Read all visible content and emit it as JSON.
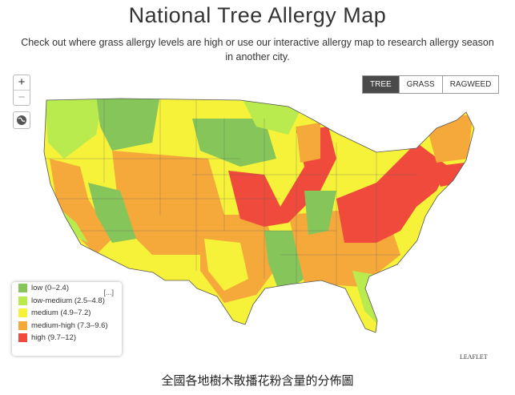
{
  "header": {
    "title": "National Tree Allergy Map",
    "subtitle_line1": "Check out where grass allergy levels are high or use our interactive allergy map to research allergy season",
    "subtitle_line2": "in another city."
  },
  "controls": {
    "zoom_in": "+",
    "zoom_out": "−"
  },
  "tabs": [
    "TREE",
    "GRASS",
    "RAGWEED"
  ],
  "legend": [
    {
      "label": "low (0–2.4)",
      "color": "#86c55a"
    },
    {
      "label": "low-medium (2.5–4.8)",
      "color": "#b9ea4e"
    },
    {
      "label": "medium (4.9–7.2)",
      "color": "#f6f23a"
    },
    {
      "label": "medium-high (7.3–9.6)",
      "color": "#f5a93b"
    },
    {
      "label": "high (9.7–12)",
      "color": "#ef4a3c"
    }
  ],
  "attribution": "LEAFLET",
  "caption": "全國各地樹木散播花粉含量的分佈圖"
}
